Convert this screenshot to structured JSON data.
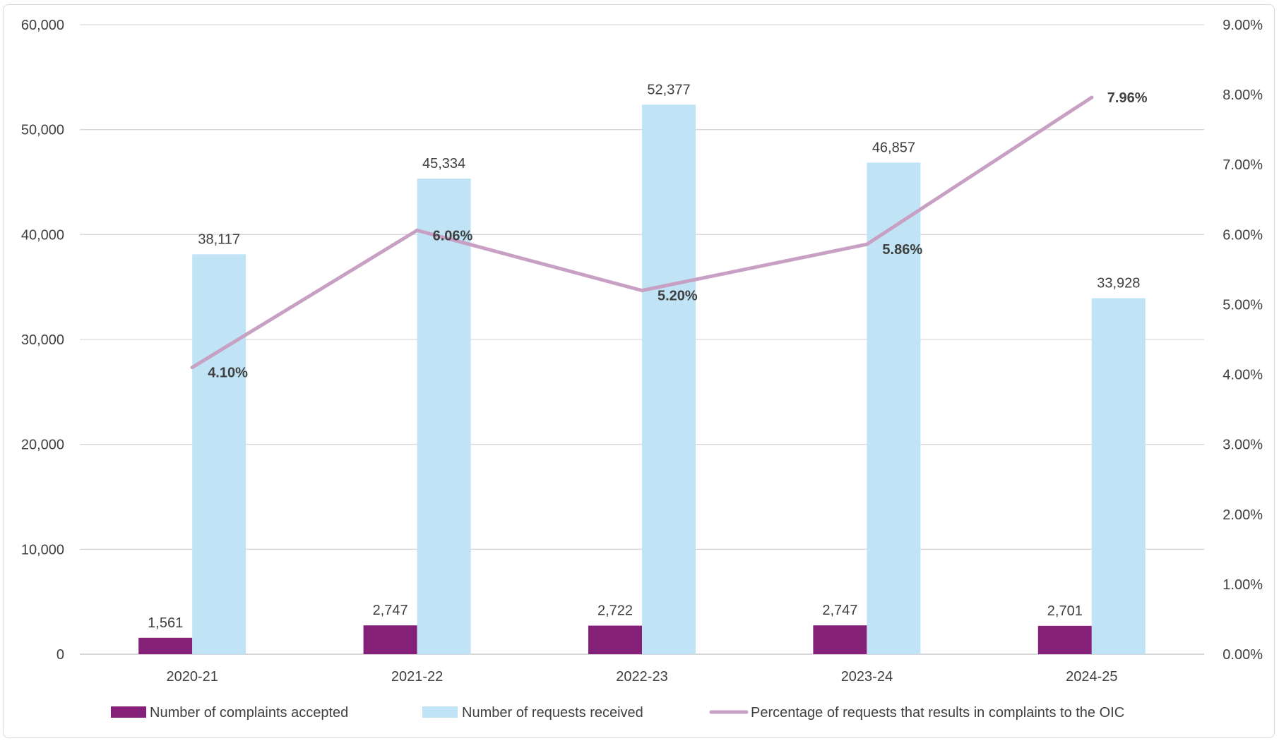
{
  "chart_data": {
    "type": "bar",
    "categories": [
      "2020-21",
      "2021-22",
      "2022-23",
      "2023-24",
      "2024-25"
    ],
    "series": [
      {
        "name": "Number of complaints accepted",
        "type": "bar",
        "axis": "left",
        "color": "#842077",
        "values": [
          1561,
          2747,
          2722,
          2747,
          2701
        ],
        "labels": [
          "1,561",
          "2,747",
          "2,722",
          "2,747",
          "2,701"
        ]
      },
      {
        "name": "Number of requests received",
        "type": "bar",
        "axis": "left",
        "color": "#c0e4f5",
        "values": [
          38117,
          45334,
          52377,
          46857,
          33928
        ],
        "labels": [
          "38,117",
          "45,334",
          "52,377",
          "46,857",
          "33,928"
        ]
      },
      {
        "name": "Percentage of requests that results in complaints to the OIC",
        "type": "line",
        "axis": "right",
        "color": "#c8a0c4",
        "values": [
          4.1,
          6.06,
          5.2,
          5.86,
          7.96
        ],
        "labels": [
          "4.10%",
          "6.06%",
          "5.20%",
          "5.86%",
          "7.96%"
        ]
      }
    ],
    "y_left": {
      "range": [
        0,
        60000
      ],
      "ticks": [
        0,
        10000,
        20000,
        30000,
        40000,
        50000,
        60000
      ],
      "tick_labels": [
        "0",
        "10,000",
        "20,000",
        "30,000",
        "40,000",
        "50,000",
        "60,000"
      ]
    },
    "y_right": {
      "range": [
        0,
        9
      ],
      "ticks": [
        0,
        1,
        2,
        3,
        4,
        5,
        6,
        7,
        8,
        9
      ],
      "tick_labels": [
        "0.00%",
        "1.00%",
        "2.00%",
        "3.00%",
        "4.00%",
        "5.00%",
        "6.00%",
        "7.00%",
        "8.00%",
        "9.00%"
      ]
    },
    "grid": true,
    "legend_position": "bottom"
  }
}
